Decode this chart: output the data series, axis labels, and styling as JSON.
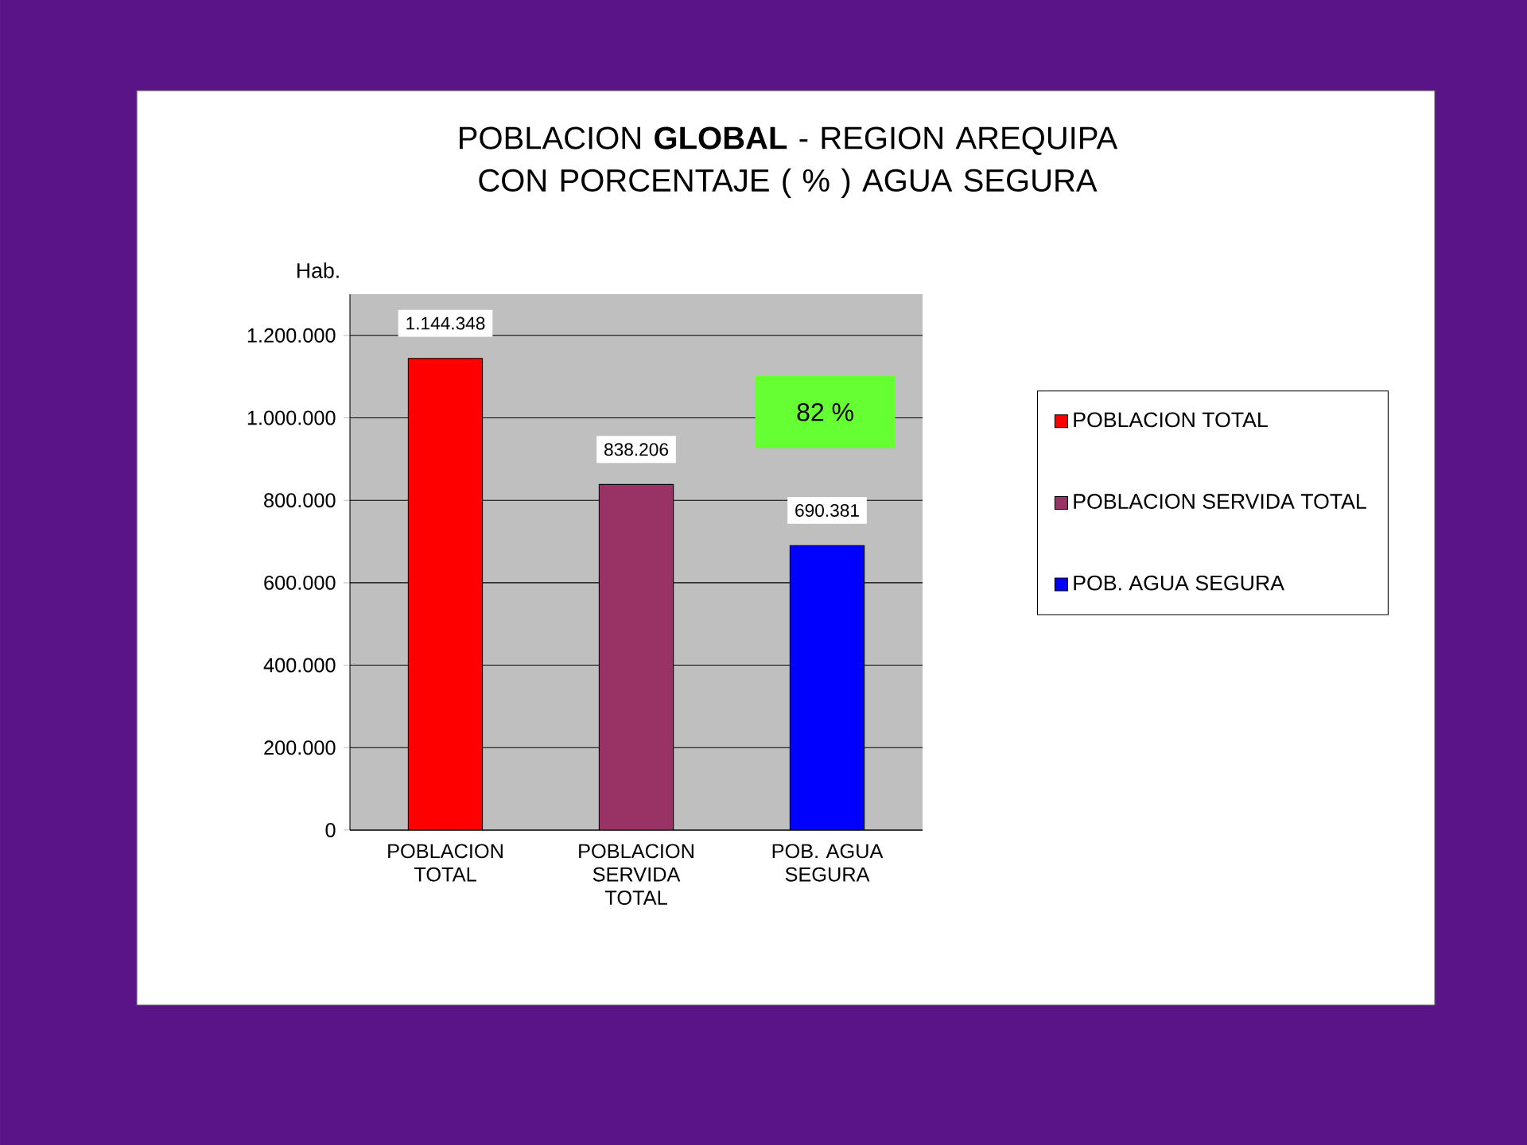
{
  "chart_data": {
    "type": "bar",
    "title": "POBLACION **GLOBAL** - REGION AREQUIPA CON PORCENTAJE ( % ) AGUA SEGURA",
    "ylabel": "Hab.",
    "categories": [
      "POBLACION TOTAL",
      "POBLACION SERVIDA TOTAL",
      "POB. AGUA SEGURA"
    ],
    "series": [
      {
        "name": "POBLACION  TOTAL",
        "color": "#ff0000",
        "values": [
          1144348,
          null,
          null
        ],
        "value_labels": [
          "1.144.348",
          null,
          null
        ]
      },
      {
        "name": "POBLACION SERVIDA TOTAL",
        "color": "#993366",
        "values": [
          null,
          838206,
          null
        ],
        "value_labels": [
          null,
          "838.206",
          null
        ]
      },
      {
        "name": "POB. AGUA SEGURA",
        "color": "#0000ff",
        "values": [
          null,
          null,
          690381
        ],
        "value_labels": [
          null,
          null,
          "690.381"
        ]
      }
    ],
    "ylim": [
      0,
      1300000
    ],
    "yticks": [
      {
        "value": 0,
        "label": "0"
      },
      {
        "value": 200000,
        "label": "200.000"
      },
      {
        "value": 400000,
        "label": "400.000"
      },
      {
        "value": 600000,
        "label": "600.000"
      },
      {
        "value": 800000,
        "label": "800.000"
      },
      {
        "value": 1000000,
        "label": "1.000.000"
      },
      {
        "value": 1200000,
        "label": "1.200.000"
      }
    ],
    "grid": "y",
    "legend": "right",
    "annotations": [
      "82 %"
    ]
  }
}
